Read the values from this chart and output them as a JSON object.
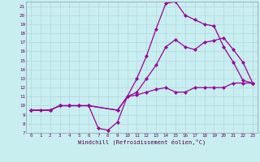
{
  "bg_color": "#c8eef0",
  "line_color": "#990099",
  "grid_color": "#b0d8da",
  "xlabel": "Windchill (Refroidissement éolien,°C)",
  "xlim": [
    -0.5,
    23.5
  ],
  "ylim": [
    7,
    21.5
  ],
  "xticks": [
    0,
    1,
    2,
    3,
    4,
    5,
    6,
    7,
    8,
    9,
    10,
    11,
    12,
    13,
    14,
    15,
    16,
    17,
    18,
    19,
    20,
    21,
    22,
    23
  ],
  "yticks": [
    7,
    8,
    9,
    10,
    11,
    12,
    13,
    14,
    15,
    16,
    17,
    18,
    19,
    20,
    21
  ],
  "line1_x": [
    0,
    1,
    2,
    3,
    4,
    5,
    6,
    7,
    8,
    9,
    10,
    11,
    12,
    13,
    14,
    15,
    16,
    17,
    18,
    19,
    20,
    21,
    22,
    23
  ],
  "line1_y": [
    9.5,
    9.5,
    9.5,
    10,
    10,
    10,
    10,
    7.5,
    7.3,
    8.2,
    11,
    11.2,
    11.5,
    11.8,
    12,
    11.5,
    11.5,
    12,
    12,
    12,
    12,
    12.5,
    12.5,
    12.5
  ],
  "line2_x": [
    0,
    2,
    3,
    4,
    5,
    6,
    9,
    10,
    11,
    12,
    13,
    14,
    15,
    16,
    17,
    18,
    19,
    20,
    21,
    22,
    23
  ],
  "line2_y": [
    9.5,
    9.5,
    10,
    10,
    10,
    10,
    9.5,
    11,
    13,
    15.5,
    18.5,
    21.3,
    21.5,
    20,
    19.5,
    19.0,
    18.8,
    16.5,
    14.8,
    12.8,
    12.5
  ],
  "line3_x": [
    0,
    2,
    3,
    4,
    5,
    6,
    9,
    10,
    11,
    12,
    13,
    14,
    15,
    16,
    17,
    18,
    19,
    20,
    21,
    22,
    23
  ],
  "line3_y": [
    9.5,
    9.5,
    10,
    10,
    10,
    10,
    9.5,
    11,
    11.5,
    13,
    14.5,
    16.5,
    17.3,
    16.5,
    16.2,
    17.0,
    17.2,
    17.5,
    16.2,
    14.8,
    12.5
  ],
  "markersize": 2.5,
  "linewidth": 0.9
}
